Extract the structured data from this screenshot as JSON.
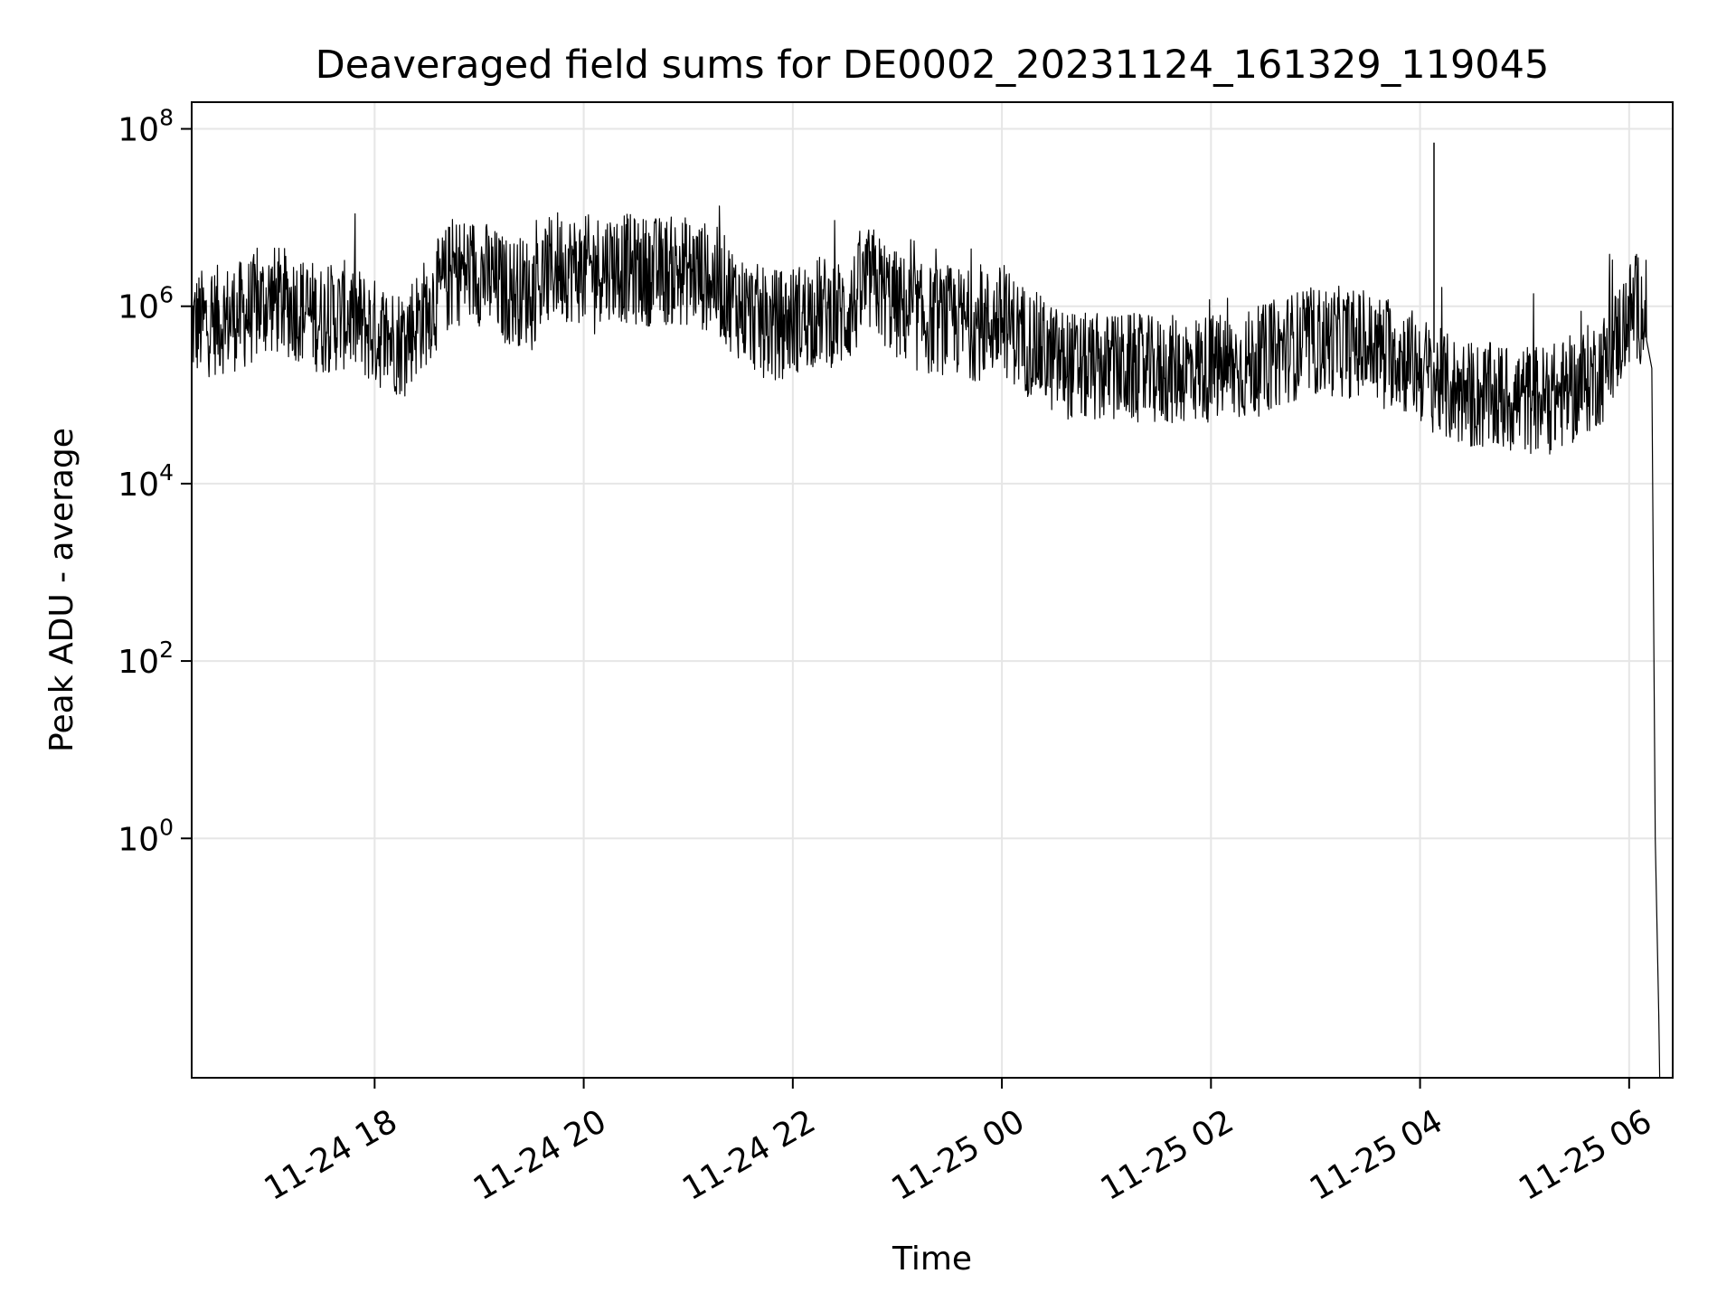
{
  "chart_data": {
    "type": "line",
    "title": "Deaveraged field sums for DE0002_20231124_161329_119045",
    "xlabel": "Time",
    "ylabel": "Peak ADU - average",
    "x_scale": "time",
    "y_scale": "log",
    "xlim": [
      "2023-11-24T16:15",
      "2023-11-25T06:25"
    ],
    "ylim": [
      0.002,
      200000000.0
    ],
    "grid": true,
    "line_color": "#000000",
    "x_ticks": [
      {
        "value": "2023-11-24T18:00",
        "label": "11-24 18"
      },
      {
        "value": "2023-11-24T20:00",
        "label": "11-24 20"
      },
      {
        "value": "2023-11-24T22:00",
        "label": "11-24 22"
      },
      {
        "value": "2023-11-25T00:00",
        "label": "11-25 00"
      },
      {
        "value": "2023-11-25T02:00",
        "label": "11-25 02"
      },
      {
        "value": "2023-11-25T04:00",
        "label": "11-25 04"
      },
      {
        "value": "2023-11-25T06:00",
        "label": "11-25 06"
      }
    ],
    "y_ticks": [
      {
        "value": 1,
        "base": "10",
        "exp": "0"
      },
      {
        "value": 100,
        "base": "10",
        "exp": "2"
      },
      {
        "value": 10000,
        "base": "10",
        "exp": "4"
      },
      {
        "value": 1000000,
        "base": "10",
        "exp": "6"
      },
      {
        "value": 100000000,
        "base": "10",
        "exp": "8"
      }
    ],
    "series": [
      {
        "x": [
          "2023-11-24T16:15",
          "2023-11-24T16:30",
          "2023-11-24T16:45",
          "2023-11-24T17:00",
          "2023-11-24T17:15",
          "2023-11-24T17:30",
          "2023-11-24T17:45",
          "2023-11-24T18:00",
          "2023-11-24T18:15",
          "2023-11-24T18:30",
          "2023-11-24T18:45",
          "2023-11-24T19:00",
          "2023-11-24T19:15",
          "2023-11-24T19:30",
          "2023-11-24T19:45",
          "2023-11-24T20:00",
          "2023-11-24T20:15",
          "2023-11-24T20:30",
          "2023-11-24T20:45",
          "2023-11-24T21:00",
          "2023-11-24T21:15",
          "2023-11-24T21:30",
          "2023-11-24T21:45",
          "2023-11-24T22:00",
          "2023-11-24T22:15",
          "2023-11-24T22:30",
          "2023-11-24T22:45",
          "2023-11-24T23:00",
          "2023-11-24T23:15",
          "2023-11-24T23:30",
          "2023-11-24T23:45",
          "2023-11-25T00:00",
          "2023-11-25T00:15",
          "2023-11-25T00:30",
          "2023-11-25T00:45",
          "2023-11-25T01:00",
          "2023-11-25T01:15",
          "2023-11-25T01:30",
          "2023-11-25T01:45",
          "2023-11-25T02:00",
          "2023-11-25T02:15",
          "2023-11-25T02:30",
          "2023-11-25T02:45",
          "2023-11-25T03:00",
          "2023-11-25T03:15",
          "2023-11-25T03:30",
          "2023-11-25T03:45",
          "2023-11-25T04:00",
          "2023-11-25T04:15",
          "2023-11-25T04:30",
          "2023-11-25T04:45",
          "2023-11-25T05:00",
          "2023-11-25T05:15",
          "2023-11-25T05:30",
          "2023-11-25T05:45",
          "2023-11-25T06:00",
          "2023-11-25T06:05",
          "2023-11-25T06:10",
          "2023-11-25T06:13",
          "2023-11-25T06:15",
          "2023-11-25T06:17"
        ],
        "y": [
          600000,
          700000,
          800000,
          1200000,
          1000000,
          700000,
          800000,
          500000,
          400000,
          900000,
          2500000,
          2500000,
          1500000,
          1500000,
          3000000,
          2500000,
          3000000,
          2500000,
          2500000,
          2500000,
          2000000,
          1000000,
          600000,
          700000,
          900000,
          800000,
          2000000,
          1000000,
          700000,
          700000,
          600000,
          700000,
          400000,
          250000,
          200000,
          200000,
          200000,
          180000,
          200000,
          200000,
          200000,
          250000,
          350000,
          400000,
          400000,
          350000,
          300000,
          200000,
          120000,
          100000,
          90000,
          90000,
          90000,
          120000,
          200000,
          800000,
          1000000,
          800000,
          200000,
          1,
          0.01
        ]
      }
    ],
    "annotations": [
      {
        "type": "spike",
        "x": "2023-11-25T04:08",
        "y": 70000000
      }
    ]
  }
}
